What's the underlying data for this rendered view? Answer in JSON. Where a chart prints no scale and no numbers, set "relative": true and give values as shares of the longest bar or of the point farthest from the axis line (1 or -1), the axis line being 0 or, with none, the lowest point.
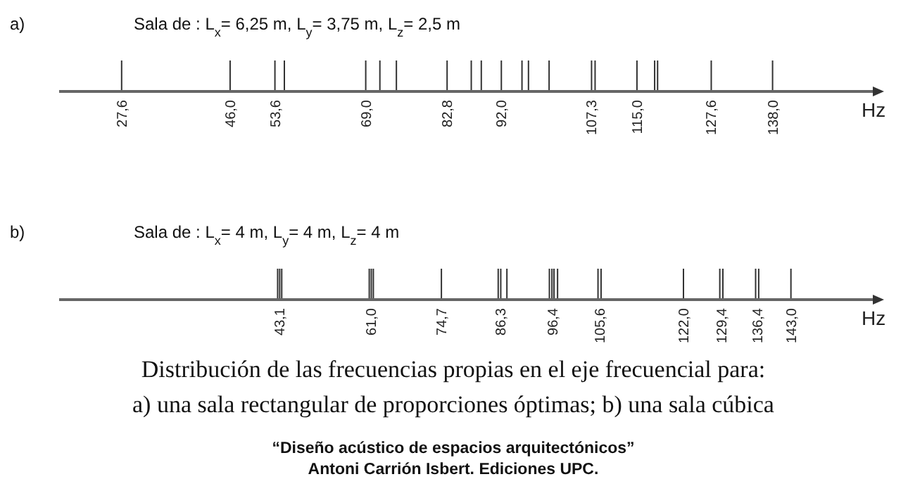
{
  "chart_data": [
    {
      "type": "bar",
      "relative": true,
      "title": "Sala de :  L$_{x}$= 6,25 m,   L$_{y}$= 3,75 m,   L$_{z}$= 2,5 m",
      "xlabel": "Hz",
      "color": "#333333",
      "x": [
        27.6,
        46.0,
        53.6,
        55.2,
        69.0,
        71.4,
        74.2,
        82.8,
        86.9,
        88.6,
        92.0,
        95.5,
        96.6,
        100.1,
        107.3,
        107.9,
        115.0,
        118.0,
        118.5,
        127.6,
        138.0
      ],
      "values": [
        1,
        1,
        1,
        1,
        1,
        1,
        1,
        1,
        1,
        1,
        1,
        1,
        1,
        1,
        1,
        1,
        1,
        1,
        1,
        1,
        1
      ],
      "xlim": [
        17,
        155
      ],
      "xticks": [
        {
          "value": 27.6,
          "label": "27,6"
        },
        {
          "value": 46.0,
          "label": "46,0"
        },
        {
          "value": 53.6,
          "label": "53,6"
        },
        {
          "value": 69.0,
          "label": "69,0"
        },
        {
          "value": 82.8,
          "label": "82,8"
        },
        {
          "value": 92.0,
          "label": "92,0"
        },
        {
          "value": 107.3,
          "label": "107,3"
        },
        {
          "value": 115.0,
          "label": "115,0"
        },
        {
          "value": 127.6,
          "label": "127,6"
        },
        {
          "value": 138.0,
          "label": "138,0"
        }
      ],
      "annotations": [
        "a)"
      ]
    },
    {
      "type": "bar",
      "relative": true,
      "title": "Sala de :  L$_{x}$= 4 m,   L$_{y}$= 4 m,   L$_{z}$= 4 m",
      "xlabel": "Hz",
      "color": "#333333",
      "x": [
        42.7,
        43.1,
        43.5,
        60.6,
        61.0,
        61.4,
        74.7,
        85.8,
        86.3,
        87.5,
        95.8,
        96.3,
        96.7,
        97.4,
        105.3,
        105.9,
        122.0,
        129.1,
        129.7,
        136.1,
        136.7,
        143.0
      ],
      "values": [
        1,
        1,
        1,
        1,
        1,
        1,
        1,
        1,
        1,
        1,
        1,
        1,
        1,
        1,
        1,
        1,
        1,
        1,
        1,
        1,
        1,
        1
      ],
      "xlim": [
        0,
        159
      ],
      "xticks": [
        {
          "value": 43.1,
          "label": "43,1"
        },
        {
          "value": 61.0,
          "label": "61,0"
        },
        {
          "value": 74.7,
          "label": "74,7"
        },
        {
          "value": 86.3,
          "label": "86,3"
        },
        {
          "value": 96.4,
          "label": "96,4"
        },
        {
          "value": 105.6,
          "label": "105,6"
        },
        {
          "value": 122.0,
          "label": "122,0"
        },
        {
          "value": 129.4,
          "label": "129,4"
        },
        {
          "value": 136.4,
          "label": "136,4"
        },
        {
          "value": 143.0,
          "label": "143,0"
        }
      ],
      "annotations": [
        "b)",
        "Distribución de las frecuencias propias en el eje frecuencial para:",
        "a) una sala rectangular de proporciones óptimas; b) una sala cúbica",
        "“Diseño acústico de espacios arquitectónicos”",
        "Antoni Carrión Isbert. Ediciones UPC."
      ]
    }
  ]
}
